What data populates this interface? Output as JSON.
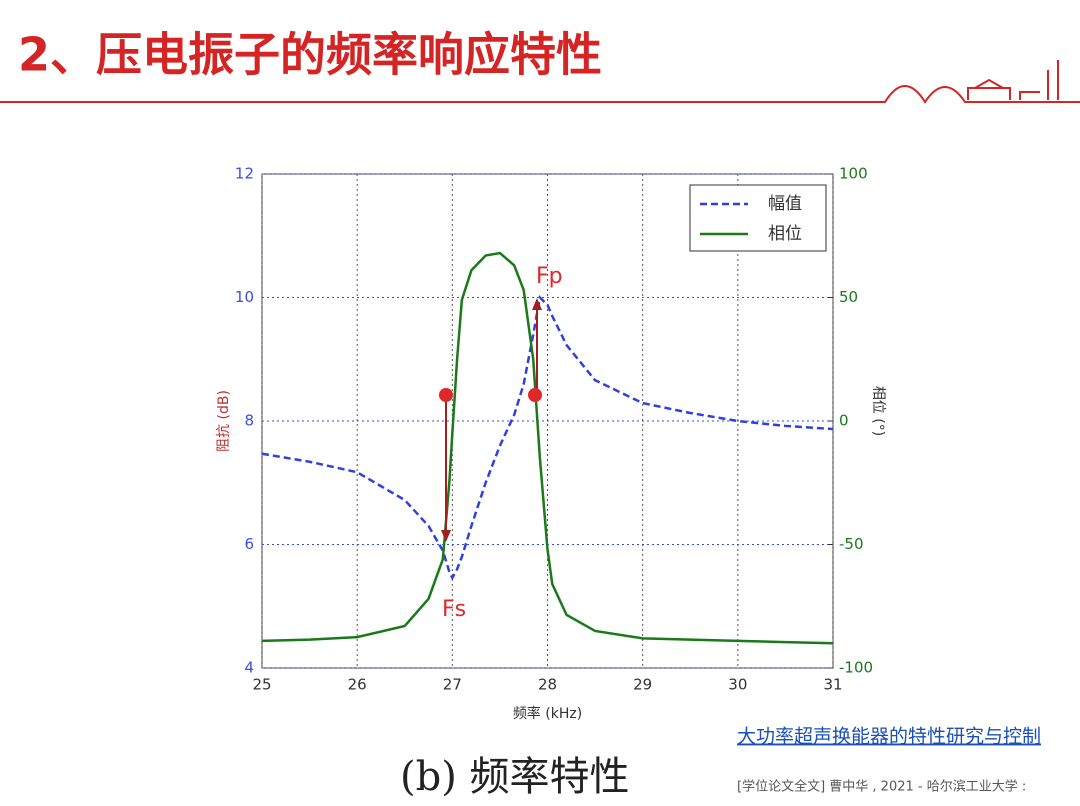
{
  "slide": {
    "title": "2、压电振子的频率响应特性",
    "caption": "(b) 频率特性",
    "link": "大功率超声换能器的特性研究与控制",
    "citation": "[学位论文全文] 曹中华 , 2021 - 哈尔滨工业大学 :"
  },
  "chart_data": {
    "type": "line",
    "x_label": "频率 (kHz)",
    "y_label": "阻抗 (dB)",
    "y2_label": "相位 (°)",
    "x": [
      25,
      25.5,
      26,
      26.5,
      26.75,
      26.9,
      26.97,
      27,
      27.05,
      27.1,
      27.2,
      27.35,
      27.5,
      27.65,
      27.75,
      27.85,
      27.92,
      28,
      28.05,
      28.2,
      28.5,
      29,
      29.5,
      30,
      30.5,
      31
    ],
    "series": [
      {
        "name": "幅值",
        "color": "#2f3fe0",
        "dashed": true,
        "values": [
          7.47,
          7.34,
          7.17,
          6.72,
          6.3,
          5.9,
          5.55,
          5.46,
          5.6,
          5.8,
          6.3,
          7.0,
          7.6,
          8.1,
          8.6,
          9.4,
          10.0,
          9.88,
          9.7,
          9.23,
          8.66,
          8.29,
          8.13,
          8.0,
          7.92,
          7.87
        ]
      },
      {
        "name": "相位",
        "color": "#1a7a1a",
        "axis": "y2",
        "values": [
          -89,
          -88.5,
          -87.5,
          -83,
          -72,
          -56,
          -24,
          -5,
          25,
          49,
          61,
          67,
          68,
          63,
          53,
          25,
          -15,
          -52,
          -66,
          -78.5,
          -85,
          -88,
          -88.5,
          -89,
          -89.5,
          -90
        ]
      }
    ],
    "xlim": [
      25,
      31
    ],
    "xticks": [
      25,
      26,
      27,
      28,
      29,
      30,
      31
    ],
    "ylim": [
      4,
      12
    ],
    "yticks": [
      4,
      6,
      8,
      10,
      12
    ],
    "y2lim": [
      -100,
      100
    ],
    "y2ticks": [
      -100,
      -50,
      0,
      50,
      100
    ],
    "grid": true,
    "legend": "upper right",
    "annotations": [
      "Fp",
      "Fs"
    ]
  }
}
